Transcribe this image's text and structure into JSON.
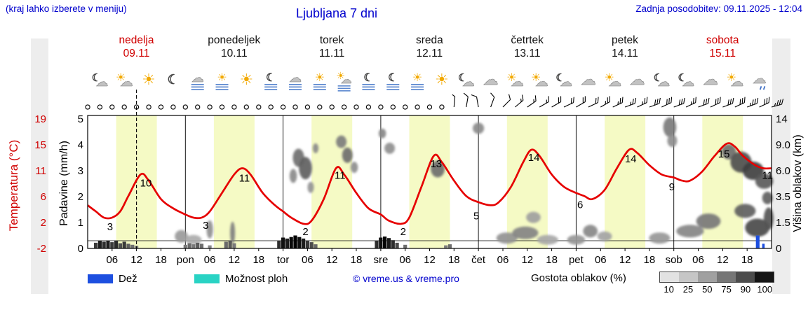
{
  "header": {
    "menu_note": "(kraj lahko izberete v meniju)",
    "title": "Ljubljana 7 dni",
    "last_update": "Zadnja posodobitev: 09.11.2025 - 12:04"
  },
  "days": [
    {
      "name": "nedelja",
      "date": "09.11",
      "weekend": true
    },
    {
      "name": "ponedeljek",
      "date": "10.11",
      "weekend": false
    },
    {
      "name": "torek",
      "date": "11.11",
      "weekend": false
    },
    {
      "name": "sreda",
      "date": "12.11",
      "weekend": false
    },
    {
      "name": "četrtek",
      "date": "13.11",
      "weekend": false
    },
    {
      "name": "petek",
      "date": "14.11",
      "weekend": false
    },
    {
      "name": "sobota",
      "date": "15.11",
      "weekend": true
    }
  ],
  "legend": {
    "rain_label": "Dež",
    "rain_color": "#1d4fe0",
    "showers_label": "Možnost ploh",
    "showers_color": "#29d3c4",
    "copyright": "© vreme.us & vreme.pro",
    "cloud_density_label": "Gostota oblakov (%)",
    "cloud_density_steps": [
      {
        "label": "10",
        "color": "#e2e2e2"
      },
      {
        "label": "25",
        "color": "#c6c6c6"
      },
      {
        "label": "50",
        "color": "#a0a0a0"
      },
      {
        "label": "75",
        "color": "#767676"
      },
      {
        "label": "90",
        "color": "#4c4c4c"
      },
      {
        "label": "100",
        "color": "#151515"
      }
    ]
  },
  "chart_data": {
    "type": "line",
    "title": "Ljubljana 7 dni",
    "x_unit": "hours from 09.11 00:00",
    "x_range": [
      0,
      168
    ],
    "now_h": 12,
    "temp_color": "#e60000",
    "axis_red": "#d00000",
    "daylight": {
      "start_h": 7,
      "end_h": 17,
      "color": "#f5fac5"
    },
    "temp_axis": {
      "label": "Temperatura (°C)",
      "ticks": [
        "19",
        "15",
        "11",
        "6",
        "2",
        "-2"
      ]
    },
    "precip_axis": {
      "label": "Padavine (mm/h)",
      "ticks": [
        "5",
        "4",
        "3",
        "2",
        "1",
        "0"
      ]
    },
    "cloud_axis": {
      "label": "Višina oblakov (km)",
      "ticks": [
        "14",
        "9.0",
        "6.0",
        "3.5",
        "1.5",
        "0"
      ]
    },
    "x_ticks": [
      [
        6,
        "06"
      ],
      [
        12,
        "12"
      ],
      [
        18,
        "18"
      ],
      [
        24,
        "pon"
      ],
      [
        30,
        "06"
      ],
      [
        36,
        "12"
      ],
      [
        42,
        "18"
      ],
      [
        48,
        "tor"
      ],
      [
        54,
        "06"
      ],
      [
        60,
        "12"
      ],
      [
        66,
        "18"
      ],
      [
        72,
        "sre"
      ],
      [
        78,
        "06"
      ],
      [
        84,
        "12"
      ],
      [
        90,
        "18"
      ],
      [
        96,
        "čet"
      ],
      [
        102,
        "06"
      ],
      [
        108,
        "12"
      ],
      [
        114,
        "18"
      ],
      [
        120,
        "pet"
      ],
      [
        126,
        "06"
      ],
      [
        132,
        "12"
      ],
      [
        138,
        "18"
      ],
      [
        144,
        "sob"
      ],
      [
        150,
        "06"
      ],
      [
        156,
        "12"
      ],
      [
        162,
        "18"
      ]
    ],
    "temperature": [
      [
        0,
        5
      ],
      [
        2,
        4
      ],
      [
        4,
        3
      ],
      [
        6,
        3
      ],
      [
        8,
        4
      ],
      [
        10,
        6.5
      ],
      [
        13,
        10
      ],
      [
        15,
        9
      ],
      [
        18,
        6
      ],
      [
        21,
        4.5
      ],
      [
        24,
        3.5
      ],
      [
        26,
        3
      ],
      [
        28,
        3
      ],
      [
        30,
        4
      ],
      [
        33,
        7
      ],
      [
        36,
        10
      ],
      [
        38,
        11
      ],
      [
        40,
        10
      ],
      [
        43,
        7
      ],
      [
        46,
        5
      ],
      [
        48,
        4
      ],
      [
        50,
        3
      ],
      [
        53,
        2
      ],
      [
        55,
        2.5
      ],
      [
        58,
        6
      ],
      [
        61,
        11
      ],
      [
        63,
        10
      ],
      [
        66,
        7
      ],
      [
        69,
        4.5
      ],
      [
        72,
        3.5
      ],
      [
        74,
        2.5
      ],
      [
        77,
        2
      ],
      [
        79,
        3
      ],
      [
        82,
        8
      ],
      [
        85,
        13
      ],
      [
        87,
        12
      ],
      [
        90,
        9
      ],
      [
        93,
        6.5
      ],
      [
        96,
        5.5
      ],
      [
        99,
        5
      ],
      [
        101,
        5.5
      ],
      [
        104,
        8
      ],
      [
        107,
        12
      ],
      [
        109,
        14
      ],
      [
        111,
        13
      ],
      [
        114,
        10
      ],
      [
        117,
        8
      ],
      [
        120,
        7
      ],
      [
        122,
        6.5
      ],
      [
        124,
        6
      ],
      [
        127,
        7.5
      ],
      [
        130,
        11
      ],
      [
        133,
        14
      ],
      [
        135,
        13.5
      ],
      [
        138,
        11.5
      ],
      [
        141,
        10
      ],
      [
        144,
        9.5
      ],
      [
        146,
        9
      ],
      [
        148,
        9
      ],
      [
        151,
        10.5
      ],
      [
        154,
        13
      ],
      [
        157,
        15
      ],
      [
        159,
        14.5
      ],
      [
        161,
        13
      ],
      [
        164,
        11.5
      ],
      [
        166,
        11
      ],
      [
        168,
        11
      ]
    ],
    "temp_labels": [
      [
        5.5,
        3,
        18
      ],
      [
        14.3,
        10,
        17
      ],
      [
        29,
        3,
        16
      ],
      [
        38.5,
        11,
        19
      ],
      [
        53.5,
        2,
        16
      ],
      [
        62,
        11,
        15
      ],
      [
        77.5,
        2,
        16
      ],
      [
        85.6,
        13,
        16
      ],
      [
        95.5,
        5,
        20
      ],
      [
        109.6,
        14,
        16
      ],
      [
        121,
        6,
        13
      ],
      [
        133.4,
        14,
        18
      ],
      [
        143.5,
        9,
        14
      ],
      [
        156.3,
        15,
        20
      ],
      [
        167,
        11,
        15
      ]
    ],
    "precip_bars": [
      [
        2,
        0.9,
        0.22,
        "#3a3a3a"
      ],
      [
        3,
        0.9,
        0.3,
        "#1e1e1e"
      ],
      [
        4,
        0.9,
        0.26,
        "#2e2e2e"
      ],
      [
        5,
        0.9,
        0.3,
        "#1e1e1e"
      ],
      [
        6,
        0.9,
        0.24,
        "#3a3a3a"
      ],
      [
        7,
        0.9,
        0.3,
        "#2a2a2a"
      ],
      [
        8,
        0.9,
        0.2,
        "#4e4e4e"
      ],
      [
        9,
        0.9,
        0.26,
        "#3a3a3a"
      ],
      [
        10,
        0.9,
        0.18,
        "#5e5e5e"
      ],
      [
        11,
        0.9,
        0.14,
        "#6e6e6e"
      ],
      [
        12,
        0.9,
        0.1,
        "#7e7e7e"
      ],
      [
        24,
        0.9,
        0.14,
        "#7a7a7a"
      ],
      [
        25,
        0.9,
        0.2,
        "#6a6a6a"
      ],
      [
        26,
        0.9,
        0.16,
        "#7a7a7a"
      ],
      [
        27,
        0.9,
        0.22,
        "#5e5e5e"
      ],
      [
        28,
        0.9,
        0.18,
        "#6e6e6e"
      ],
      [
        30,
        0.9,
        0.12,
        "#8a8a8a"
      ],
      [
        34,
        0.9,
        0.26,
        "#6a6a6a"
      ],
      [
        35,
        0.9,
        0.3,
        "#5a5a5a"
      ],
      [
        36,
        0.9,
        0.2,
        "#7a7a7a"
      ],
      [
        47,
        0.9,
        0.3,
        "#2e2e2e"
      ],
      [
        48,
        0.9,
        0.42,
        "#101010"
      ],
      [
        49,
        0.9,
        0.38,
        "#1c1c1c"
      ],
      [
        50,
        0.9,
        0.44,
        "#0a0a0a"
      ],
      [
        51,
        0.9,
        0.5,
        "#000000"
      ],
      [
        52,
        0.9,
        0.44,
        "#101010"
      ],
      [
        53,
        0.9,
        0.38,
        "#1c1c1c"
      ],
      [
        54,
        0.9,
        0.3,
        "#383838"
      ],
      [
        55,
        0.9,
        0.24,
        "#4c4c4c"
      ],
      [
        56,
        0.9,
        0.16,
        "#6a6a6a"
      ],
      [
        71,
        0.9,
        0.3,
        "#2e2e2e"
      ],
      [
        72,
        0.9,
        0.42,
        "#101010"
      ],
      [
        73,
        0.9,
        0.46,
        "#050505"
      ],
      [
        74,
        0.9,
        0.4,
        "#1a1a1a"
      ],
      [
        75,
        0.9,
        0.32,
        "#2e2e2e"
      ],
      [
        76,
        0.9,
        0.22,
        "#4c4c4c"
      ],
      [
        78,
        0.9,
        0.14,
        "#6e6e6e"
      ],
      [
        88,
        0.9,
        0.12,
        "#7e7e7e"
      ],
      [
        89,
        0.9,
        0.16,
        "#6e6e6e"
      ],
      [
        164.6,
        0.9,
        0.5,
        "#1d4fe0"
      ],
      [
        166,
        0.6,
        0.18,
        "#1d4fe0"
      ]
    ],
    "clouds": [
      [
        23,
        0.7,
        1.6,
        9,
        "#9a9a9a"
      ],
      [
        26,
        0.5,
        2.0,
        7,
        "#ababab"
      ],
      [
        30,
        1.1,
        0.8,
        13,
        "#8f8f8f"
      ],
      [
        35.6,
        0.9,
        0.6,
        16,
        "#7e7e7e"
      ],
      [
        50.5,
        5.5,
        0.9,
        10,
        "#8a8a8a"
      ],
      [
        51.8,
        7.5,
        1.4,
        13,
        "#6f6f6f"
      ],
      [
        53.5,
        6.3,
        1.6,
        16,
        "#5f5f5f"
      ],
      [
        54.8,
        4.4,
        0.8,
        8,
        "#949494"
      ],
      [
        56,
        8.6,
        0.7,
        7,
        "#8a8a8a"
      ],
      [
        62.3,
        9.6,
        1.3,
        9,
        "#7d7d7d"
      ],
      [
        63.8,
        7.8,
        1.3,
        11,
        "#6f6f6f"
      ],
      [
        65.5,
        6.4,
        0.9,
        8,
        "#8d8d8d"
      ],
      [
        72.4,
        11.2,
        0.9,
        7,
        "#878787"
      ],
      [
        74.2,
        8.6,
        1.3,
        8,
        "#8f8f8f"
      ],
      [
        86,
        6.2,
        1.7,
        12,
        "#6d6d6d"
      ],
      [
        96,
        12.2,
        1.4,
        8,
        "#8a8a8a"
      ],
      [
        103,
        0.6,
        2.6,
        8,
        "#939393"
      ],
      [
        107.5,
        0.9,
        3.2,
        9,
        "#838383"
      ],
      [
        109.5,
        1.9,
        1.8,
        8,
        "#a0a0a0"
      ],
      [
        113,
        0.5,
        2.6,
        7,
        "#a8a8a8"
      ],
      [
        120,
        0.5,
        2.2,
        7,
        "#969696"
      ],
      [
        123.5,
        1.0,
        1.8,
        9,
        "#888888"
      ],
      [
        127,
        0.7,
        1.8,
        7,
        "#a3a3a3"
      ],
      [
        140.5,
        0.6,
        2.6,
        8,
        "#979797"
      ],
      [
        143,
        12.4,
        1.6,
        14,
        "#7b7b7b"
      ],
      [
        143.6,
        9.8,
        1.2,
        9,
        "#8e8e8e"
      ],
      [
        148,
        1.0,
        3.4,
        9,
        "#868686"
      ],
      [
        152.5,
        1.6,
        3.0,
        11,
        "#787878"
      ],
      [
        157.5,
        8.2,
        1.8,
        11,
        "#6e6e6e"
      ],
      [
        160.5,
        7.0,
        2.6,
        15,
        "#4f4f4f"
      ],
      [
        163.5,
        6.0,
        2.6,
        13,
        "#3f3f3f"
      ],
      [
        166.2,
        5.0,
        2.2,
        11,
        "#5a5a5a"
      ],
      [
        161.5,
        2.4,
        2.6,
        10,
        "#5f5f5f"
      ],
      [
        164.5,
        1.2,
        3.0,
        13,
        "#4a4a4a"
      ],
      [
        167,
        3.4,
        1.3,
        9,
        "#606060"
      ],
      [
        167.3,
        1.8,
        1.2,
        16,
        "#555555"
      ]
    ],
    "wind": {
      "step_h": 3,
      "calm_through_h": 87,
      "barbs": [
        [
          90,
          -85,
          0.5
        ],
        [
          93,
          -80,
          1
        ],
        [
          96,
          -100,
          1
        ],
        [
          99,
          -70,
          1
        ],
        [
          102,
          -45,
          1
        ],
        [
          105,
          -40,
          1.5
        ],
        [
          108,
          -35,
          1.5
        ],
        [
          111,
          -30,
          1.5
        ],
        [
          114,
          -30,
          2
        ],
        [
          117,
          -25,
          2
        ],
        [
          120,
          -30,
          2
        ],
        [
          123,
          -25,
          2
        ],
        [
          126,
          -30,
          2.5
        ],
        [
          129,
          -25,
          2.5
        ],
        [
          132,
          -20,
          2.5
        ],
        [
          135,
          -25,
          2.5
        ],
        [
          138,
          -20,
          3
        ],
        [
          141,
          -25,
          3
        ],
        [
          144,
          -20,
          3
        ],
        [
          147,
          -25,
          2.5
        ],
        [
          150,
          -20,
          3
        ],
        [
          153,
          -25,
          3
        ],
        [
          156,
          -20,
          3
        ],
        [
          159,
          -25,
          3
        ],
        [
          162,
          -20,
          3.5
        ],
        [
          165,
          -25,
          3
        ],
        [
          168,
          -15,
          3.5
        ]
      ]
    },
    "icons": [
      "moon-cloud",
      "sun-cloud",
      "sun",
      "moon",
      "fog-cloud",
      "fog-sun",
      "sun",
      "moon-fog",
      "fog-cloud",
      "fog-sun",
      "sun-cloud-fog",
      "moon-fog",
      "moon-fog",
      "fog-sun",
      "sun",
      "moon-cloud",
      "cloud",
      "sun-cloud",
      "sun-cloud",
      "moon-cloud",
      "cloud",
      "sun-cloud",
      "cloud",
      "moon-cloud",
      "moon-cloud",
      "cloud",
      "sun-cloud",
      "cloud-drizzle"
    ]
  }
}
